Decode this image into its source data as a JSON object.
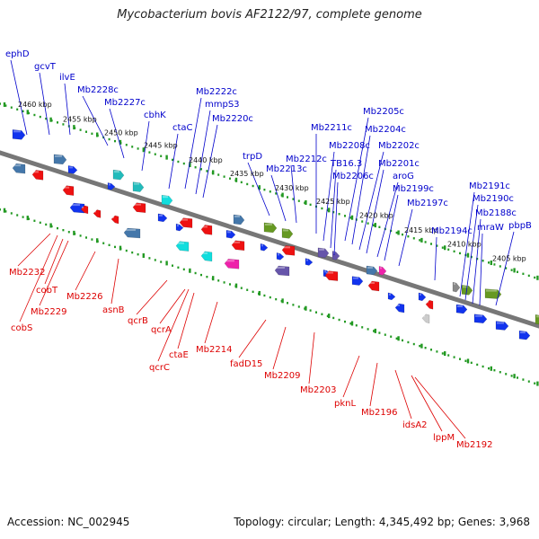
{
  "title": "Mycobacterium bovis AF2122/97, complete genome",
  "footer": {
    "accession": "Accession: NC_002945",
    "summary": "Topology: circular; Length: 4,345,492 bp; Genes: 3,968"
  },
  "colors": {
    "forward_label": "#0000cc",
    "reverse_label": "#dd0000",
    "backbone": "#777777",
    "tick": "#229922"
  },
  "axis": {
    "ticks": [
      {
        "label": "2460 kbp"
      },
      {
        "label": "2455 kbp"
      },
      {
        "label": "2450 kbp"
      },
      {
        "label": "2445 kbp"
      },
      {
        "label": "2440 kbp"
      },
      {
        "label": "2435 kbp"
      },
      {
        "label": "2430 kbp"
      },
      {
        "label": "2425 kbp"
      },
      {
        "label": "2420 kbp"
      },
      {
        "label": "2415 kbp"
      },
      {
        "label": "2410 kbp"
      },
      {
        "label": "2405 kbp"
      }
    ]
  },
  "forward_genes": [
    {
      "name": "ephD"
    },
    {
      "name": "gcvT"
    },
    {
      "name": "ilvE"
    },
    {
      "name": "Mb2228c"
    },
    {
      "name": "Mb2227c"
    },
    {
      "name": "cbhK"
    },
    {
      "name": "ctaC"
    },
    {
      "name": "Mb2222c"
    },
    {
      "name": "mmpS3"
    },
    {
      "name": "Mb2220c"
    },
    {
      "name": "trpD"
    },
    {
      "name": "Mb2213c"
    },
    {
      "name": "Mb2212c"
    },
    {
      "name": "Mb2211c"
    },
    {
      "name": "Mb2208c"
    },
    {
      "name": "TB16.3"
    },
    {
      "name": "Mb2206c"
    },
    {
      "name": "Mb2205c"
    },
    {
      "name": "Mb2204c"
    },
    {
      "name": "Mb2202c"
    },
    {
      "name": "Mb2201c"
    },
    {
      "name": "aroG"
    },
    {
      "name": "Mb2199c"
    },
    {
      "name": "Mb2197c"
    },
    {
      "name": "Mb2194c"
    },
    {
      "name": "Mb2191c"
    },
    {
      "name": "Mb2190c"
    },
    {
      "name": "Mb2188c"
    },
    {
      "name": "mraW"
    },
    {
      "name": "pbpB"
    }
  ],
  "reverse_genes": [
    {
      "name": "Mb2232"
    },
    {
      "name": "cobT"
    },
    {
      "name": "Mb2229"
    },
    {
      "name": "cobS"
    },
    {
      "name": "Mb2226"
    },
    {
      "name": "asnB"
    },
    {
      "name": "qcrB"
    },
    {
      "name": "qcrA"
    },
    {
      "name": "ctaE"
    },
    {
      "name": "qcrC"
    },
    {
      "name": "Mb2214"
    },
    {
      "name": "fadD15"
    },
    {
      "name": "Mb2209"
    },
    {
      "name": "Mb2203"
    },
    {
      "name": "pknL"
    },
    {
      "name": "Mb2196"
    },
    {
      "name": "idsA2"
    },
    {
      "name": "lppM"
    },
    {
      "name": "Mb2192"
    }
  ]
}
